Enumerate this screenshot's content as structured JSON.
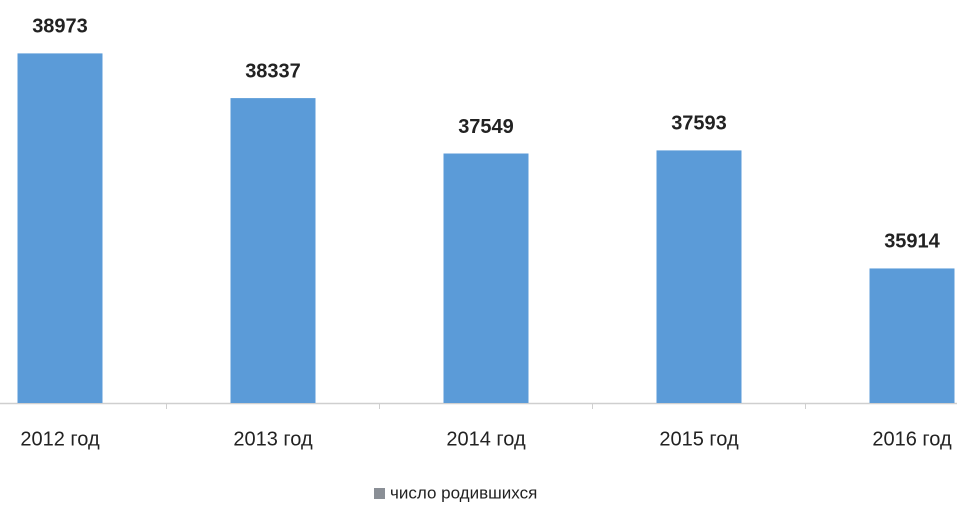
{
  "chart_data": {
    "type": "bar",
    "categories": [
      "2012 год",
      "2013 год",
      "2014 год",
      "2015 год",
      "2016 год"
    ],
    "series": [
      {
        "name": "число родившихся",
        "color": "#5b9bd8",
        "values": [
          38973,
          38337,
          37549,
          37593,
          35914
        ]
      }
    ],
    "ylim": [
      34000,
      39000
    ],
    "legend": "bottom"
  }
}
